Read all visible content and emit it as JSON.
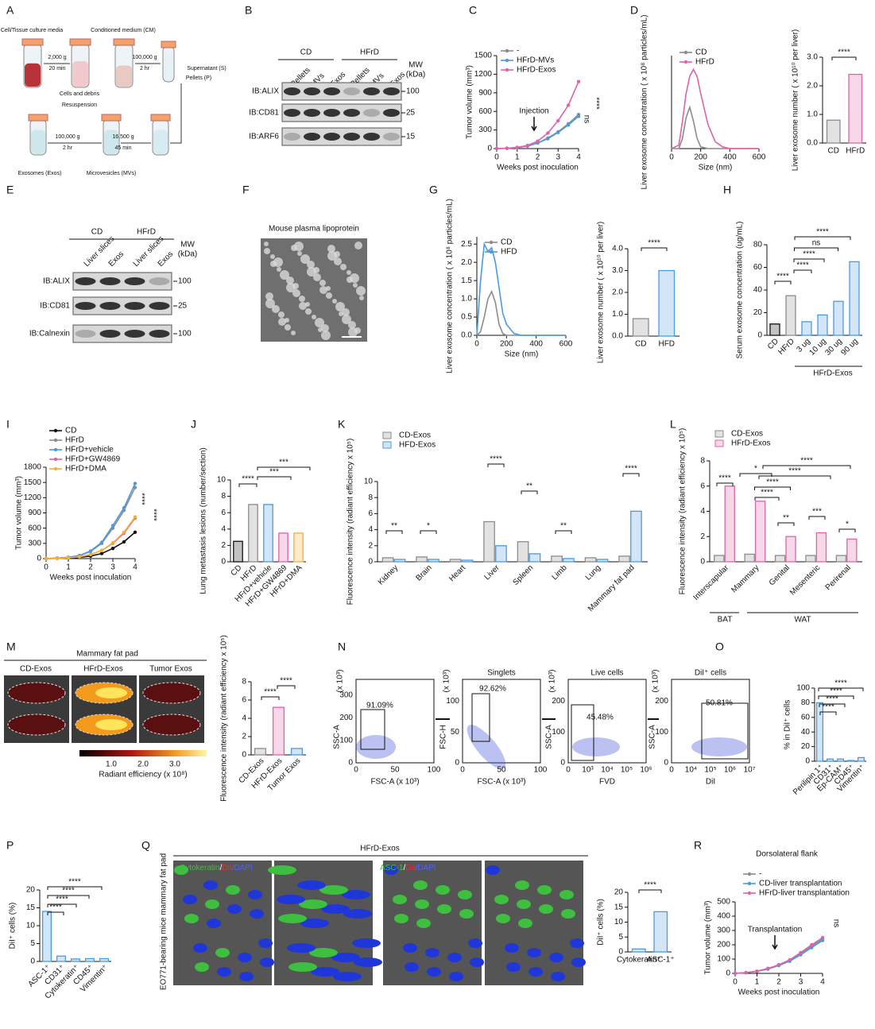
{
  "panels": {
    "letters": [
      "A",
      "B",
      "C",
      "D",
      "E",
      "F",
      "G",
      "H",
      "I",
      "J",
      "K",
      "L",
      "M",
      "N",
      "O",
      "P",
      "Q",
      "R"
    ],
    "A": {
      "texts": [
        "Cell/Tissue culture media",
        "Conditioned medium (CM)",
        "2,000 g",
        "20 min",
        "100,000 g",
        "2 hr",
        "Supernatant (S)",
        "Pellets (P)",
        "Cells and debris",
        "Resuspension",
        "100,000 g",
        "2 hr",
        "16,500 g",
        "45 min",
        "Exosomes (Exos)",
        "Microvesicles (MVs)"
      ]
    },
    "B": {
      "groups": [
        "CD",
        "HFrD"
      ],
      "lanes": [
        "Pellets",
        "MVs",
        "Exos",
        "Pellets",
        "MVs",
        "Exos"
      ],
      "rows": [
        "IB:ALIX",
        "IB:CD81",
        "IB:ARF6"
      ],
      "mw": [
        "100",
        "25",
        "15"
      ],
      "mw_title": [
        "MW",
        "(kDa)"
      ]
    },
    "E": {
      "groups": [
        "CD",
        "HFrD"
      ],
      "lanes": [
        "Liver slices",
        "Exos",
        "Liver slices",
        "Exos"
      ],
      "rows": [
        "IB:ALIX",
        "IB:CD81",
        "IB:Calnexin"
      ],
      "mw": [
        "100",
        "25",
        "100"
      ],
      "mw_title": [
        "MW",
        "(kDa)"
      ]
    },
    "F": {
      "title": "Mouse plasma lipoprotein"
    },
    "M": {
      "title": "Mammary fat pad",
      "labels": [
        "CD-Exos",
        "HFrD-Exos",
        "Tumor Exos"
      ],
      "colorbar_ticks": [
        "1.0",
        "2.0",
        "3.0"
      ],
      "colorbar_label": "Radiant efficiency (x 10⁸)"
    },
    "N": {
      "plots": [
        {
          "gate": "91.09%",
          "xlabel": "FSC-A (x 10³)",
          "ylabel": "SSC-A",
          "yunit": "(x 10³)",
          "xticks": [
            "0",
            "50",
            "100"
          ],
          "yticks": [
            "0",
            "100",
            "200",
            "300"
          ]
        },
        {
          "title": "Singlets",
          "gate": "92.62%",
          "xlabel": "FSC-A (x 10³)",
          "ylabel": "FSC-H",
          "yunit": "(x 10³)",
          "xticks": [
            "0",
            "50",
            "100"
          ],
          "yticks": [
            "0",
            "50",
            "100"
          ]
        },
        {
          "title": "Live cells",
          "gate": "45.48%",
          "xlabel": "FVD",
          "ylabel": "SSC-A",
          "yunit": "(x 10³)",
          "xticks": [
            "0",
            "10³",
            "10⁴",
            "10⁵",
            "10⁶"
          ],
          "yticks": [
            "0",
            "100",
            "200"
          ]
        },
        {
          "title": "DiI⁺ cells",
          "gate": "50.81%",
          "xlabel": "DiI",
          "ylabel": "SSC-A",
          "yunit": "(x 10³)",
          "xticks": [
            "0",
            "10⁴",
            "10⁵",
            "10⁶",
            "10⁷"
          ],
          "yticks": [
            "0",
            "100",
            "200"
          ]
        }
      ]
    },
    "Q": {
      "header": "HFrD-Exos",
      "side_label": "EO771-bearing mice mammary fat pad",
      "stain1": [
        "Cytokeratin",
        "/",
        "DiI",
        "/DAPI"
      ],
      "stain2": [
        "ASC-1",
        "/",
        "DiI",
        "/DAPI"
      ]
    }
  },
  "chart_data": [
    {
      "type": "line",
      "ylabel": "Tumor volume (mm³)",
      "xlabel": "Weeks post inoculation",
      "x": [
        0,
        0.5,
        1,
        1.5,
        2,
        2.5,
        3,
        3.5,
        4
      ],
      "xlim": [
        0,
        4
      ],
      "xticks": [
        0,
        1,
        2,
        3,
        4
      ],
      "ylim": [
        0,
        1500
      ],
      "yticks": [
        0,
        300,
        600,
        900,
        1200,
        1500
      ],
      "legend": "upper left",
      "series": [
        {
          "name": "-",
          "color": "#8c8c8c",
          "values": [
            0,
            5,
            15,
            40,
            90,
            170,
            270,
            400,
            550
          ]
        },
        {
          "name": "HFrD-MVs",
          "color": "#4a9ae0",
          "values": [
            0,
            5,
            15,
            40,
            90,
            160,
            260,
            380,
            520
          ]
        },
        {
          "name": "HFrD-Exos",
          "color": "#e062a8",
          "values": [
            0,
            5,
            20,
            50,
            120,
            250,
            450,
            700,
            1080
          ]
        }
      ],
      "annotations": [
        "Injection",
        "****",
        "ns"
      ]
    },
    {
      "type": "line",
      "ylabel": "Liver exosome concentration ( x 10⁸ particles/mL)",
      "xlabel": "Size (nm)",
      "x": [
        0,
        50,
        75,
        100,
        125,
        150,
        175,
        200,
        250,
        300,
        350,
        400,
        600
      ],
      "xlim": [
        0,
        600
      ],
      "xticks": [
        0,
        200,
        400,
        600
      ],
      "ylim": [
        0,
        2.7
      ],
      "legend": "upper left",
      "series": [
        {
          "name": "CD",
          "color": "#8c8c8c",
          "values": [
            0,
            0,
            0.3,
            0.9,
            1.2,
            0.8,
            0.3,
            0.05,
            0,
            0,
            0,
            0,
            0
          ]
        },
        {
          "name": "HFrD",
          "color": "#e062a8",
          "values": [
            0,
            0.1,
            0.8,
            1.6,
            2.1,
            2.3,
            2.1,
            1.6,
            0.7,
            0.2,
            0.05,
            0,
            0
          ]
        }
      ]
    },
    {
      "type": "bar",
      "ylabel": "Liver exosome number ( x 10¹⁰ per liver)",
      "categories": [
        "CD",
        "HFrD"
      ],
      "values": [
        0.8,
        2.4
      ],
      "colors": [
        "#8c8c8c",
        "#e062a8"
      ],
      "ylim": [
        0,
        3
      ],
      "yticks": [
        {
          "value": 0,
          "label": "0.0"
        },
        {
          "value": 1,
          "label": "1.0"
        },
        {
          "value": 2,
          "label": "2.0"
        },
        {
          "value": 3,
          "label": "3.0"
        }
      ],
      "annotations": [
        "****"
      ]
    },
    {
      "type": "line",
      "ylabel": "Liver exosome concentration ( x 10⁸ particles/mL)",
      "xlabel": "Size (nm)",
      "x": [
        0,
        25,
        50,
        75,
        100,
        125,
        150,
        175,
        200,
        250,
        300,
        400,
        600
      ],
      "xlim": [
        0,
        600
      ],
      "xticks": [
        0,
        200,
        400,
        600
      ],
      "ylim": [
        0,
        2.7
      ],
      "yticks": [
        {
          "value": 0,
          "label": "0.0"
        },
        {
          "value": 0.5,
          "label": "0.5"
        },
        {
          "value": 1,
          "label": "1.0"
        },
        {
          "value": 1.5,
          "label": "1.5"
        },
        {
          "value": 2,
          "label": "2.0"
        },
        {
          "value": 2.5,
          "label": "2.5"
        }
      ],
      "legend": "upper left",
      "series": [
        {
          "name": "CD",
          "color": "#8c8c8c",
          "values": [
            0,
            0.1,
            0.5,
            1.0,
            1.2,
            0.9,
            0.3,
            0.05,
            0,
            0,
            0,
            0,
            0
          ]
        },
        {
          "name": "HFD",
          "color": "#4a9ae0",
          "values": [
            0,
            1.5,
            2.5,
            2.3,
            2.4,
            2.0,
            1.3,
            0.6,
            0.3,
            0.05,
            0,
            0,
            0
          ]
        }
      ]
    },
    {
      "type": "bar",
      "ylabel": "Liver exosome number ( x 10¹⁰ per liver)",
      "categories": [
        "CD",
        "HFD"
      ],
      "values": [
        0.8,
        3.0
      ],
      "colors": [
        "#8c8c8c",
        "#4a9ae0"
      ],
      "ylim": [
        0,
        4
      ],
      "yticks": [
        {
          "value": 0,
          "label": "0.0"
        },
        {
          "value": 1,
          "label": "1.0"
        },
        {
          "value": 2,
          "label": "2.0"
        },
        {
          "value": 3,
          "label": "3.0"
        },
        {
          "value": 4,
          "label": "4.0"
        }
      ],
      "annotations": [
        "****"
      ]
    },
    {
      "type": "bar",
      "ylabel": "Serum exosome concentration (ug/mL)",
      "categories": [
        "CD",
        "HFrD",
        "3 ug",
        "10 ug",
        "30 ug",
        "90 ug"
      ],
      "values": [
        10,
        35,
        12,
        18,
        30,
        65
      ],
      "colors": [
        "#111111",
        "#8c8c8c",
        "#4a9ae0",
        "#4a9ae0",
        "#4a9ae0",
        "#4a9ae0"
      ],
      "ylim": [
        0,
        80
      ],
      "yticks": [
        0,
        20,
        40,
        60,
        80
      ],
      "annotations": [
        "****",
        "ns",
        "****",
        "****",
        "****"
      ],
      "group_labels": [
        "HFrD-Exos"
      ]
    },
    {
      "type": "line",
      "ylabel": "Tumor volume (mm³)",
      "xlabel": "Weeks post inoculation",
      "x": [
        0,
        0.5,
        1,
        1.5,
        2,
        2.5,
        3,
        3.5,
        4
      ],
      "xlim": [
        0,
        4
      ],
      "xticks": [
        0,
        1,
        2,
        3,
        4
      ],
      "ylim": [
        0,
        1800
      ],
      "yticks": [
        0,
        300,
        600,
        900,
        1200,
        1500,
        1800
      ],
      "legend": "upper left",
      "series": [
        {
          "name": "CD",
          "color": "#111111",
          "values": [
            0,
            5,
            10,
            25,
            50,
            100,
            200,
            330,
            520
          ]
        },
        {
          "name": "HFrD",
          "color": "#8c8c8c",
          "values": [
            0,
            10,
            25,
            60,
            140,
            300,
            600,
            950,
            1400
          ]
        },
        {
          "name": "HFrD+vehicle",
          "color": "#4a9ae0",
          "values": [
            0,
            10,
            25,
            60,
            150,
            320,
            650,
            1000,
            1480
          ]
        },
        {
          "name": "HFrD+GW4869",
          "color": "#e062a8",
          "values": [
            0,
            5,
            15,
            35,
            80,
            160,
            300,
            500,
            800
          ]
        },
        {
          "name": "HFrD+DMA",
          "color": "#f2b233",
          "values": [
            0,
            5,
            15,
            35,
            80,
            160,
            310,
            520,
            820
          ]
        }
      ],
      "annotations": [
        "****",
        "****"
      ]
    },
    {
      "type": "bar",
      "ylabel": "Lung metastasis lesions (number/section)",
      "categories": [
        "CD",
        "HFrD",
        "HFrD+vehicle",
        "HFrD+GW4869",
        "HFrD+DMA"
      ],
      "values": [
        2.5,
        7,
        7,
        3.5,
        3.5
      ],
      "colors": [
        "#111111",
        "#8c8c8c",
        "#4a9ae0",
        "#e062a8",
        "#f2b233"
      ],
      "ylim": [
        0,
        10
      ],
      "yticks": [
        0,
        2,
        4,
        6,
        8,
        10
      ],
      "annotations": [
        "****",
        "***",
        "***"
      ]
    },
    {
      "type": "bar",
      "ylabel": "Fluorescence intensity (radiant efficiency x 10⁵)",
      "categories": [
        "Kidney",
        "Brain",
        "Heart",
        "Liver",
        "Spleen",
        "Limb",
        "Lung",
        "Mammary fat pad"
      ],
      "ylim": [
        0,
        10
      ],
      "yticks": [
        0,
        2,
        4,
        6,
        8,
        10
      ],
      "legend": "upper left",
      "series": [
        {
          "name": "CD-Exos",
          "color": "#8c8c8c",
          "values": [
            0.5,
            0.6,
            0.3,
            5.0,
            2.5,
            0.7,
            0.5,
            0.7
          ]
        },
        {
          "name": "HFD-Exos",
          "color": "#4a9ae0",
          "values": [
            0.3,
            0.3,
            0.2,
            2.0,
            1.0,
            0.4,
            0.3,
            6.3
          ]
        }
      ],
      "annotations": [
        "**",
        "*",
        "****",
        "**",
        "**",
        "****"
      ]
    },
    {
      "type": "bar",
      "ylabel": "Fluorescence intensity (radiant efficiency x 10⁵)",
      "categories": [
        "Interscapular",
        "Mammary",
        "Genital",
        "Mesenteric",
        "Perirenal"
      ],
      "ylim": [
        0,
        8
      ],
      "yticks": [
        0,
        2,
        4,
        6,
        8
      ],
      "legend": "upper left",
      "series": [
        {
          "name": "CD-Exos",
          "color": "#8c8c8c",
          "values": [
            0.5,
            0.6,
            0.5,
            0.5,
            0.5
          ]
        },
        {
          "name": "HFrD-Exos",
          "color": "#e062a8",
          "values": [
            6.0,
            4.8,
            2.0,
            2.3,
            1.8
          ]
        }
      ],
      "annotations": [
        "****",
        "*",
        "****",
        "****",
        "****",
        "****",
        "**",
        "***",
        "*"
      ],
      "group_labels": [
        "BAT",
        "WAT"
      ]
    },
    {
      "type": "bar",
      "ylabel": "Fluorescence intensity (radiant efficiency x 10⁵)",
      "categories": [
        "CD-Exos",
        "HFrD-Exos",
        "Tumor Exos"
      ],
      "values": [
        0.7,
        5.2,
        0.7
      ],
      "colors": [
        "#8c8c8c",
        "#e062a8",
        "#4a9ae0"
      ],
      "ylim": [
        0,
        8
      ],
      "yticks": [
        0,
        2,
        4,
        6,
        8
      ],
      "annotations": [
        "****",
        "****"
      ]
    },
    {
      "type": "bar",
      "ylabel": "% in DiI⁺ cells",
      "categories": [
        "Perilipin 1⁺",
        "CD31⁺",
        "Ep-CAM⁺",
        "CD45⁺",
        "Vimentin⁺"
      ],
      "values": [
        80,
        3,
        3,
        1,
        5
      ],
      "color": "#4a9ae0",
      "ylim": [
        0,
        100
      ],
      "yticks": [
        0,
        20,
        40,
        60,
        80,
        100
      ],
      "annotations": [
        "****",
        "****",
        "****",
        "****"
      ]
    },
    {
      "type": "bar",
      "ylabel": "DiI⁺ cells (%)",
      "categories": [
        "ASC-1⁺",
        "CD31⁺",
        "Cytokeratin⁺",
        "CD45⁺",
        "Vimentin⁺"
      ],
      "values": [
        14,
        1.5,
        0.7,
        0.8,
        0.8
      ],
      "color": "#4a9ae0",
      "ylim": [
        0,
        20
      ],
      "yticks": [
        0,
        5,
        10,
        15,
        20
      ],
      "annotations": [
        "****",
        "****",
        "****",
        "****"
      ]
    },
    {
      "type": "bar",
      "ylabel": "DiI⁺ cells (%)",
      "categories": [
        "Cytokeratin⁺",
        "ASC-1⁺"
      ],
      "values": [
        1,
        13.5
      ],
      "color": "#4a9ae0",
      "ylim": [
        0,
        20
      ],
      "yticks": [
        0,
        5,
        10,
        15,
        20
      ],
      "annotations": [
        "****"
      ]
    },
    {
      "type": "line",
      "title": "Dorsolateral flank",
      "ylabel": "Tumor volume (mm³)",
      "xlabel": "Weeks post inoculation",
      "x": [
        0,
        0.5,
        1,
        1.5,
        2,
        2.5,
        3,
        3.5,
        4
      ],
      "xlim": [
        0,
        4
      ],
      "xticks": [
        0,
        1,
        2,
        3,
        4
      ],
      "ylim": [
        0,
        500
      ],
      "yticks": [
        0,
        100,
        200,
        300,
        400,
        500
      ],
      "legend": "upper left",
      "series": [
        {
          "name": "-",
          "color": "#8c8c8c",
          "values": [
            0,
            5,
            15,
            30,
            60,
            90,
            140,
            190,
            240
          ]
        },
        {
          "name": "CD-liver transplantation",
          "color": "#4a9ae0",
          "values": [
            0,
            5,
            15,
            30,
            55,
            85,
            130,
            180,
            230
          ]
        },
        {
          "name": "HFrD-liver transplantation",
          "color": "#e062a8",
          "values": [
            0,
            5,
            15,
            35,
            60,
            95,
            145,
            200,
            250
          ]
        }
      ],
      "annotations": [
        "Transplantation",
        "ns"
      ]
    }
  ]
}
